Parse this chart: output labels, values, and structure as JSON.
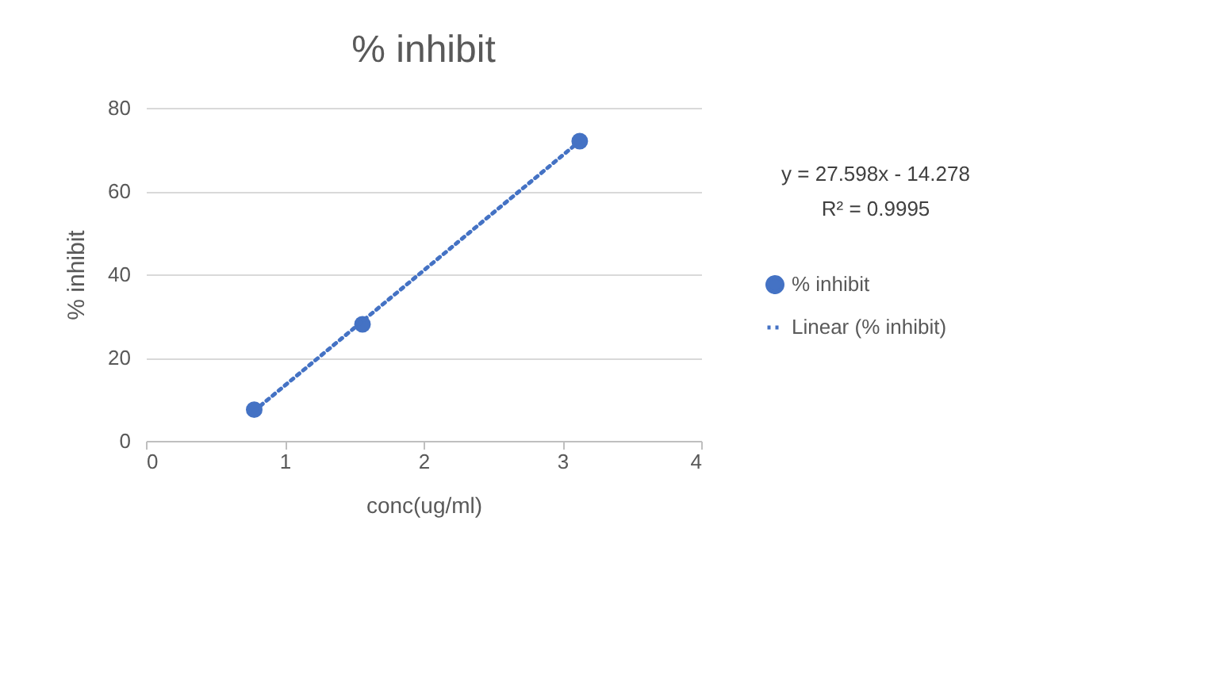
{
  "chart_data": {
    "type": "scatter",
    "title": "% inhibit",
    "xlabel": "conc(ug/ml)",
    "ylabel": "% inhibit",
    "series": [
      {
        "name": "% inhibit",
        "type": "scatter",
        "marker": "circle",
        "color": "#4472c4",
        "x": [
          0.78,
          1.56,
          3.125
        ],
        "values": [
          7.5,
          28,
          72
        ]
      },
      {
        "name": "Linear (% inhibit)",
        "type": "line",
        "marker": "none",
        "color": "#4472c4",
        "line_style": "dotted",
        "x": [
          0.78,
          3.125
        ],
        "values": [
          7.2,
          72.0
        ]
      }
    ],
    "xlim": [
      0,
      4
    ],
    "xticks": [
      0,
      1,
      2,
      3,
      4
    ],
    "ylim": [
      0,
      80
    ],
    "yticks": [
      0,
      20,
      40,
      60,
      80
    ],
    "grid": "y",
    "legend": "right",
    "annotations": [
      "y = 27.598x - 14.278",
      "R² = 0.9995"
    ]
  }
}
